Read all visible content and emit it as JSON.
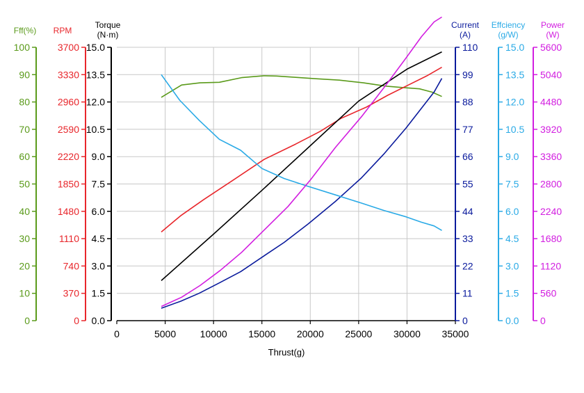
{
  "chart_data": {
    "type": "line",
    "xlabel": "Thrust(g)",
    "x_ticks": [
      "0",
      "5000",
      "10000",
      "15000",
      "20000",
      "25000",
      "30000",
      "35000"
    ],
    "xlim": [
      0,
      35000
    ],
    "axes": [
      {
        "key": "eff_pct",
        "title": [
          "Fff(%)"
        ],
        "color": "#5a9a1a",
        "ticks": [
          "0",
          "10",
          "20",
          "30",
          "40",
          "50",
          "60",
          "70",
          "80",
          "90",
          "100"
        ],
        "min": 0,
        "max": 100
      },
      {
        "key": "rpm",
        "title": [
          "RPM"
        ],
        "color": "#e8262b",
        "ticks": [
          "0",
          "370",
          "740",
          "1110",
          "1480",
          "1850",
          "2220",
          "2590",
          "2960",
          "3330",
          "3700"
        ],
        "min": 0,
        "max": 3700
      },
      {
        "key": "torque",
        "title": [
          "Torque",
          "(N·m)"
        ],
        "color": "#000000",
        "ticks": [
          "0.0",
          "1.5",
          "3.0",
          "4.5",
          "6.0",
          "7.5",
          "9.0",
          "10.5",
          "12.0",
          "13.5",
          "15.0"
        ],
        "min": 0,
        "max": 15
      },
      {
        "key": "current",
        "title": [
          "Current",
          "(A)"
        ],
        "color": "#0a1a9c",
        "ticks": [
          "0",
          "11",
          "22",
          "33",
          "44",
          "55",
          "66",
          "77",
          "88",
          "99",
          "110"
        ],
        "min": 0,
        "max": 110
      },
      {
        "key": "efficiency",
        "title": [
          "Effciency",
          "(g/W)"
        ],
        "color": "#2aaae6",
        "ticks": [
          "0.0",
          "1.5",
          "3.0",
          "4.5",
          "6.0",
          "7.5",
          "9.0",
          "10.5",
          "12.0",
          "13.5",
          "15.0"
        ],
        "min": 0,
        "max": 15
      },
      {
        "key": "power",
        "title": [
          "Power",
          "(W)"
        ],
        "color": "#d21ee0",
        "ticks": [
          "0",
          "560",
          "1120",
          "1680",
          "2240",
          "2800",
          "3360",
          "3920",
          "4480",
          "5040",
          "5600"
        ],
        "min": 0,
        "max": 5600
      }
    ],
    "series": [
      {
        "axis": "eff_pct",
        "x": [
          4600,
          6700,
          8600,
          10600,
          12900,
          15200,
          16500,
          18500,
          20600,
          23000,
          25500,
          27800,
          29500,
          31300,
          32600,
          33600
        ],
        "y": [
          81.7,
          86.2,
          87.0,
          87.2,
          88.9,
          89.6,
          89.5,
          89.0,
          88.5,
          88.0,
          87.0,
          85.8,
          85.3,
          84.8,
          83.6,
          82.0
        ]
      },
      {
        "axis": "rpm",
        "x": [
          4600,
          6600,
          9000,
          12000,
          15200,
          18500,
          21000,
          23200,
          25800,
          28000,
          30000,
          32000,
          33600
        ],
        "y": [
          1200,
          1420,
          1640,
          1900,
          2180,
          2390,
          2560,
          2740,
          2890,
          3050,
          3180,
          3310,
          3430
        ]
      },
      {
        "axis": "torque",
        "x": [
          4600,
          10000,
          15000,
          20000,
          25000,
          30000,
          33600
        ],
        "y": [
          2.2,
          4.75,
          7.15,
          9.6,
          12.05,
          13.8,
          14.75
        ]
      },
      {
        "axis": "current",
        "x": [
          4600,
          6600,
          8500,
          10600,
          12800,
          15000,
          17300,
          19800,
          22600,
          25300,
          27600,
          29900,
          31500,
          32800,
          33600
        ],
        "y": [
          5.0,
          7.8,
          11.0,
          15.2,
          19.7,
          25.5,
          31.5,
          39.0,
          48.0,
          57.5,
          67.0,
          77.5,
          85.5,
          92.0,
          97.5
        ]
      },
      {
        "axis": "efficiency",
        "x": [
          4600,
          6500,
          8500,
          10600,
          12800,
          15000,
          17300,
          19600,
          22600,
          25300,
          27600,
          29900,
          31500,
          32800,
          33600
        ],
        "y": [
          13.5,
          12.1,
          11.0,
          9.95,
          9.35,
          8.35,
          7.8,
          7.4,
          6.9,
          6.45,
          6.05,
          5.7,
          5.4,
          5.2,
          4.95
        ]
      },
      {
        "axis": "power",
        "x": [
          4600,
          6700,
          8600,
          10700,
          12900,
          15200,
          17700,
          20000,
          22600,
          25300,
          27800,
          29900,
          31500,
          32800,
          33600
        ],
        "y": [
          290,
          480,
          720,
          1030,
          1400,
          1850,
          2340,
          2880,
          3550,
          4180,
          4820,
          5380,
          5820,
          6120,
          6220
        ]
      }
    ],
    "grid": true
  }
}
